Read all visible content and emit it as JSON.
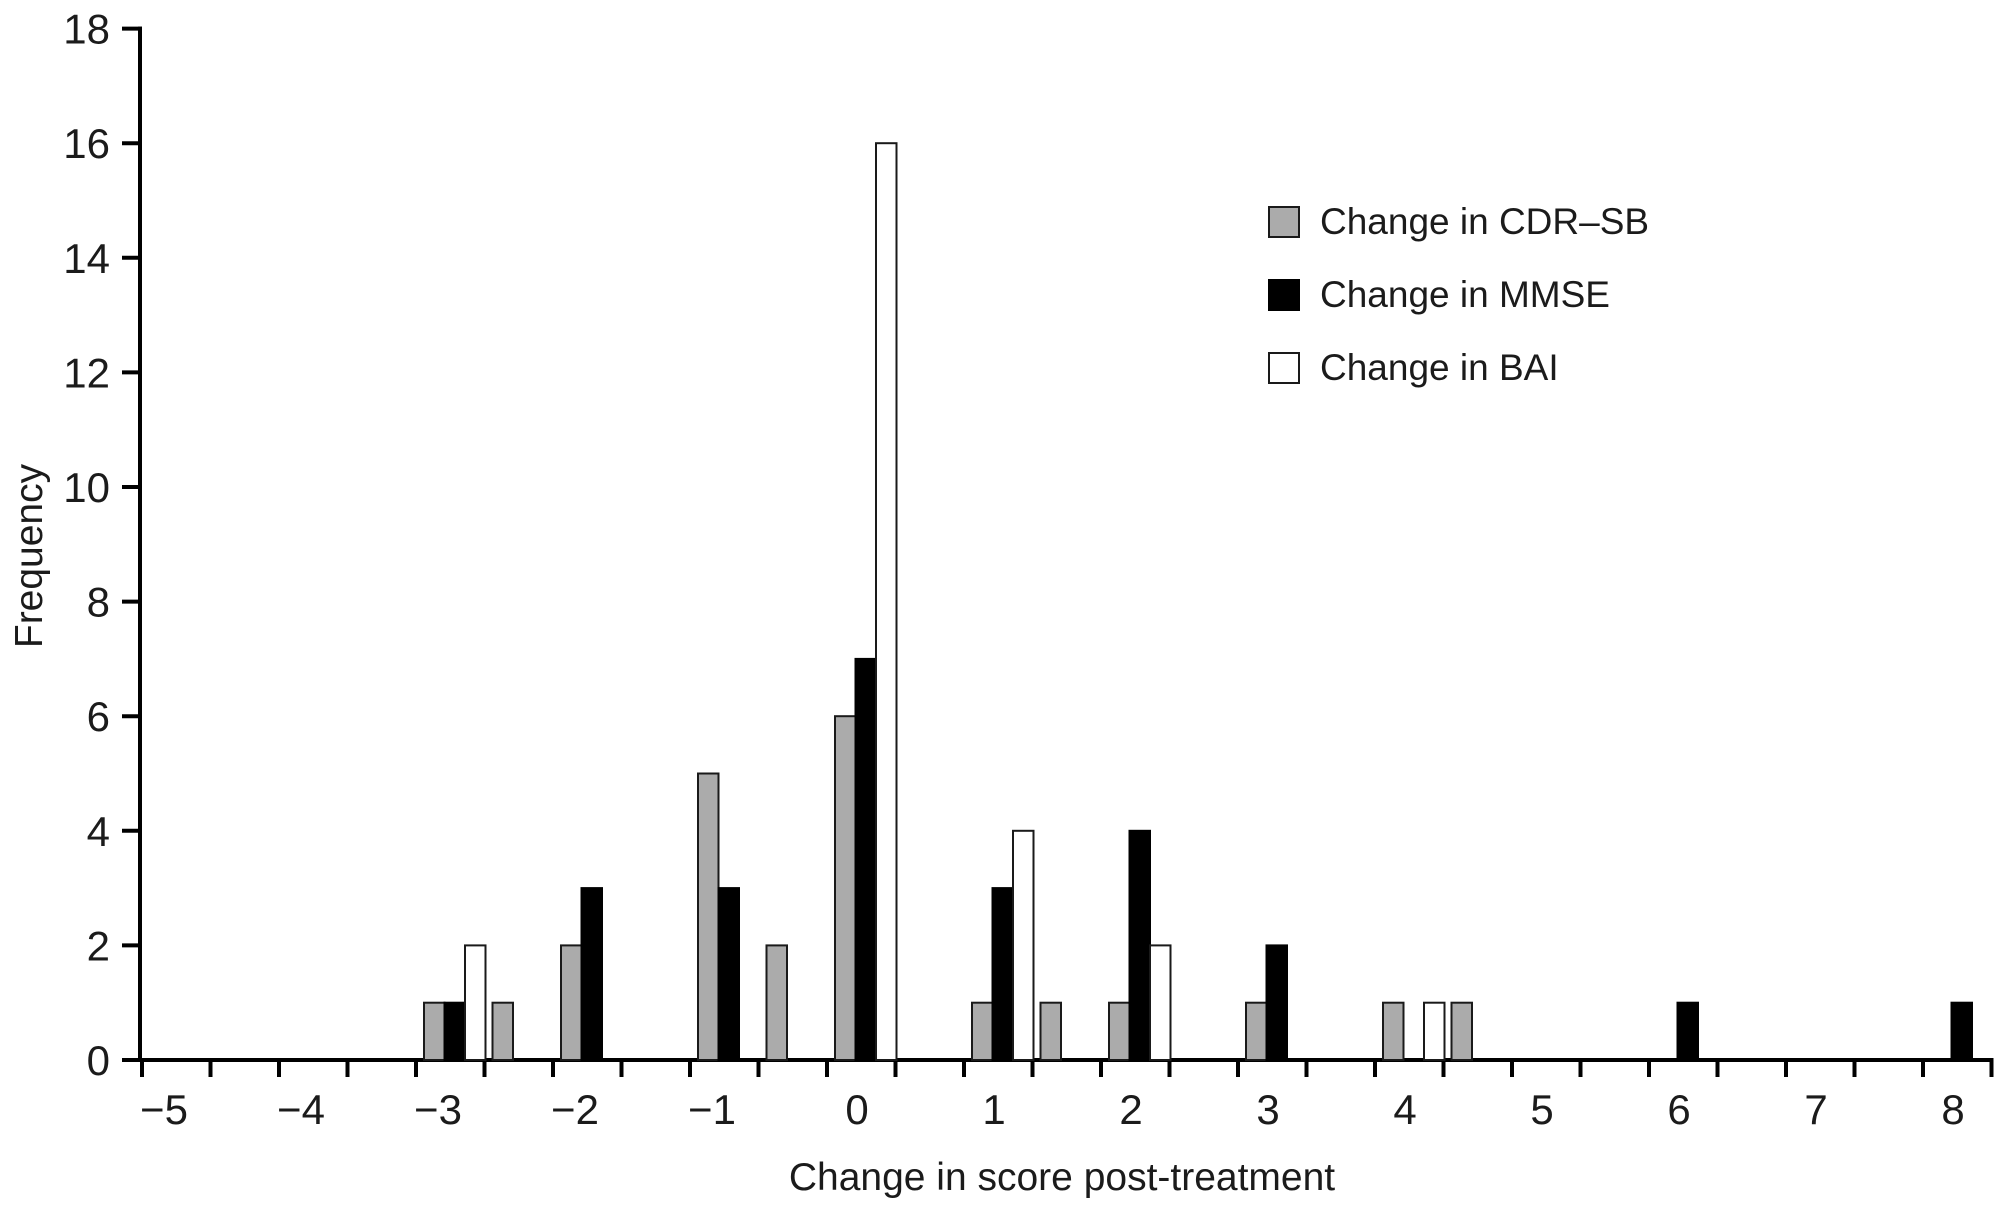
{
  "figure": {
    "background": "#ffffff",
    "text_color": "#1b1b1b",
    "axis_color": "#000000"
  },
  "chart_data": {
    "type": "bar",
    "title": "",
    "xlabel": "Change in score post-treatment",
    "ylabel": "Frequency",
    "xlim": [
      -5,
      8.5
    ],
    "ylim": [
      0,
      18
    ],
    "x_label_ticks": [
      -5,
      -4,
      -3,
      -2,
      -1,
      0,
      1,
      2,
      3,
      4,
      5,
      6,
      7,
      8
    ],
    "x_minor_tick_step": 0.5,
    "y_ticks": [
      0,
      2,
      4,
      6,
      8,
      10,
      12,
      14,
      16,
      18
    ],
    "grid": false,
    "legend_position": "upper-right-inside",
    "series": [
      {
        "name": "Change in CDR–SB",
        "color": "#ababab",
        "border": "#1a1a1a",
        "points": [
          [
            -3,
            1
          ],
          [
            -2.5,
            1
          ],
          [
            -2,
            2
          ],
          [
            -1,
            5
          ],
          [
            -0.5,
            2
          ],
          [
            0,
            6
          ],
          [
            1,
            1
          ],
          [
            1.5,
            1
          ],
          [
            2,
            1
          ],
          [
            3,
            1
          ],
          [
            4,
            1
          ],
          [
            4.5,
            1
          ]
        ]
      },
      {
        "name": "Change in MMSE",
        "color": "#000000",
        "border": "#000000",
        "points": [
          [
            -3,
            1
          ],
          [
            -2,
            3
          ],
          [
            -1,
            3
          ],
          [
            0,
            7
          ],
          [
            1,
            3
          ],
          [
            2,
            4
          ],
          [
            3,
            2
          ],
          [
            6,
            1
          ],
          [
            8,
            1
          ]
        ]
      },
      {
        "name": "Change in BAI",
        "color": "#ffffff",
        "border": "#1a1a1a",
        "points": [
          [
            -3,
            2
          ],
          [
            0,
            16
          ],
          [
            1,
            4
          ],
          [
            2,
            2
          ],
          [
            4,
            1
          ]
        ]
      }
    ]
  }
}
